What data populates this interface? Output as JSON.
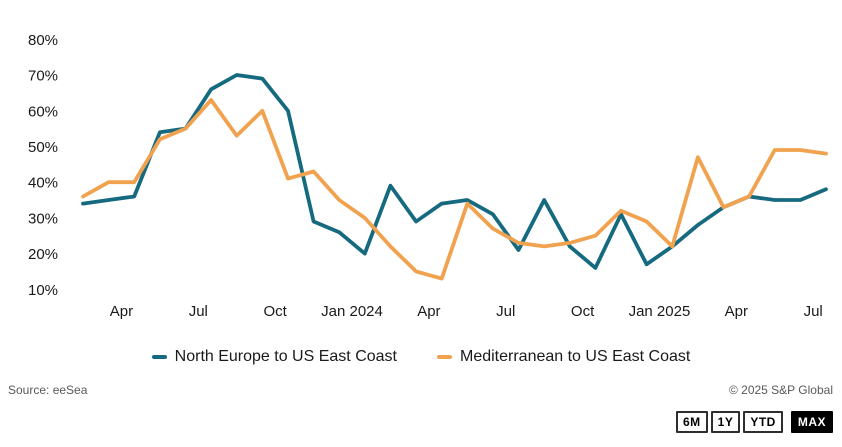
{
  "chart_data": {
    "type": "line",
    "title": "",
    "grid": false,
    "legend_position": "bottom-center",
    "ylim": [
      10,
      80
    ],
    "y_tick_values": [
      80,
      70,
      60,
      50,
      40,
      30,
      20,
      10
    ],
    "y_tick_labels": [
      "80%",
      "70%",
      "60%",
      "50%",
      "40%",
      "30%",
      "20%",
      "10%"
    ],
    "x_months": [
      "Feb 2023",
      "Mar 2023",
      "Apr 2023",
      "May 2023",
      "Jun 2023",
      "Jul 2023",
      "Aug 2023",
      "Sep 2023",
      "Oct 2023",
      "Nov 2023",
      "Dec 2023",
      "Jan 2024",
      "Feb 2024",
      "Mar 2024",
      "Apr 2024",
      "May 2024",
      "Jun 2024",
      "Jul 2024",
      "Aug 2024",
      "Sep 2024",
      "Oct 2024",
      "Nov 2024",
      "Dec 2024",
      "Jan 2025",
      "Feb 2025",
      "Mar 2025",
      "Apr 2025",
      "May 2025",
      "Jun 2025",
      "Jul 2025"
    ],
    "x_ticks": [
      {
        "label": "Apr",
        "month_index": 2
      },
      {
        "label": "Jul",
        "month_index": 5
      },
      {
        "label": "Oct",
        "month_index": 8
      },
      {
        "label": "Jan 2024",
        "month_index": 11
      },
      {
        "label": "Apr",
        "month_index": 14
      },
      {
        "label": "Jul",
        "month_index": 17
      },
      {
        "label": "Oct",
        "month_index": 20
      },
      {
        "label": "Jan 2025",
        "month_index": 23
      },
      {
        "label": "Apr",
        "month_index": 26
      },
      {
        "label": "Jul",
        "month_index": 29
      }
    ],
    "series": [
      {
        "name": "North Europe to US East Coast",
        "color": "#166A80",
        "unit": "%",
        "values": [
          34,
          35,
          36,
          54,
          55,
          66,
          70,
          69,
          60,
          29,
          26,
          20,
          39,
          29,
          34,
          35,
          31,
          21,
          35,
          22,
          16,
          31,
          17,
          22,
          28,
          33,
          36,
          35,
          35,
          38
        ]
      },
      {
        "name": "Mediterranean to US East Coast",
        "color": "#F0A24F",
        "unit": "%",
        "values": [
          36,
          40,
          40,
          52,
          55,
          63,
          53,
          60,
          41,
          43,
          35,
          30,
          22,
          15,
          13,
          34,
          27,
          23,
          22,
          23,
          25,
          32,
          29,
          22,
          47,
          33,
          36,
          49,
          49,
          48
        ]
      }
    ]
  },
  "legend": {
    "items": [
      {
        "label": "North Europe to US East Coast",
        "color": "#166A80"
      },
      {
        "label": "Mediterranean to US East Coast",
        "color": "#F0A24F"
      }
    ]
  },
  "footer": {
    "source": "Source: eeSea",
    "copyright": "© 2025 S&P Global"
  },
  "range_buttons": [
    {
      "label": "6M",
      "active": false
    },
    {
      "label": "1Y",
      "active": false
    },
    {
      "label": "YTD",
      "active": false
    },
    {
      "label": "MAX",
      "active": true
    }
  ]
}
